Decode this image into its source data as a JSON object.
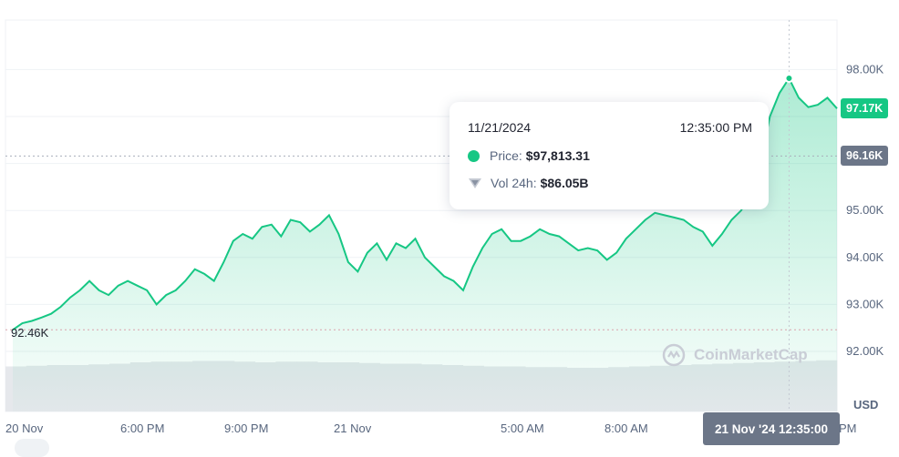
{
  "chart_data": {
    "type": "area",
    "title": "",
    "xlabel": "",
    "ylabel": "USD",
    "ylim": [
      91700,
      99000
    ],
    "y_ticks": [
      "98.00K",
      "95.00K",
      "94.00K",
      "93.00K",
      "92.00K"
    ],
    "x_ticks": [
      "20 Nov",
      "6:00 PM",
      "9:00 PM",
      "21 Nov",
      "5:00 AM",
      "8:00 AM",
      "PM"
    ],
    "series": [
      {
        "values": [
          92460,
          92600,
          92650,
          92720,
          92800,
          92950,
          93150,
          93300,
          93500,
          93300,
          93200,
          93400,
          93500,
          93400,
          93300,
          93000,
          93200,
          93300,
          93500,
          93750,
          93650,
          93500,
          93900,
          94350,
          94500,
          94400,
          94650,
          94700,
          94450,
          94800,
          94750,
          94550,
          94700,
          94900,
          94500,
          93900,
          93700,
          94100,
          94300,
          93950,
          94300,
          94200,
          94400,
          94000,
          93800,
          93600,
          93500,
          93300,
          93800,
          94200,
          94500,
          94600,
          94350,
          94350,
          94450,
          94600,
          94500,
          94450,
          94300,
          94150,
          94200,
          94150,
          93950,
          94100,
          94400,
          94600,
          94800,
          94950,
          94900,
          94850,
          94800,
          94650,
          94550,
          94250,
          94500,
          94800,
          95000,
          95400,
          96000,
          97000,
          97500,
          97813,
          97400,
          97200,
          97250,
          97400,
          97170
        ]
      }
    ],
    "start_price": "92.46K",
    "current_price": "97.17K",
    "reference_price": "96.16K",
    "volume_series": [
      66,
      67,
      68,
      68,
      69,
      70,
      72,
      73,
      73,
      74,
      74,
      73,
      72,
      73,
      73,
      72,
      72,
      71,
      70,
      70,
      69,
      68,
      67,
      66,
      66,
      65,
      65,
      64,
      64,
      65,
      66,
      67,
      68,
      69,
      70,
      71,
      72,
      73,
      74,
      75
    ]
  },
  "tooltip": {
    "date": "11/21/2024",
    "time": "12:35:00 PM",
    "price_label": "Price:",
    "price_value": "$97,813.31",
    "vol_label": "Vol 24h:",
    "vol_value": "$86.05B"
  },
  "crosshair_time": "21 Nov '24 12:35:00",
  "currency": "USD",
  "watermark": "CoinMarketCap",
  "colors": {
    "up": "#16c784",
    "ref": "#6c7688",
    "grid": "#eff2f5",
    "text": "#58667e"
  }
}
